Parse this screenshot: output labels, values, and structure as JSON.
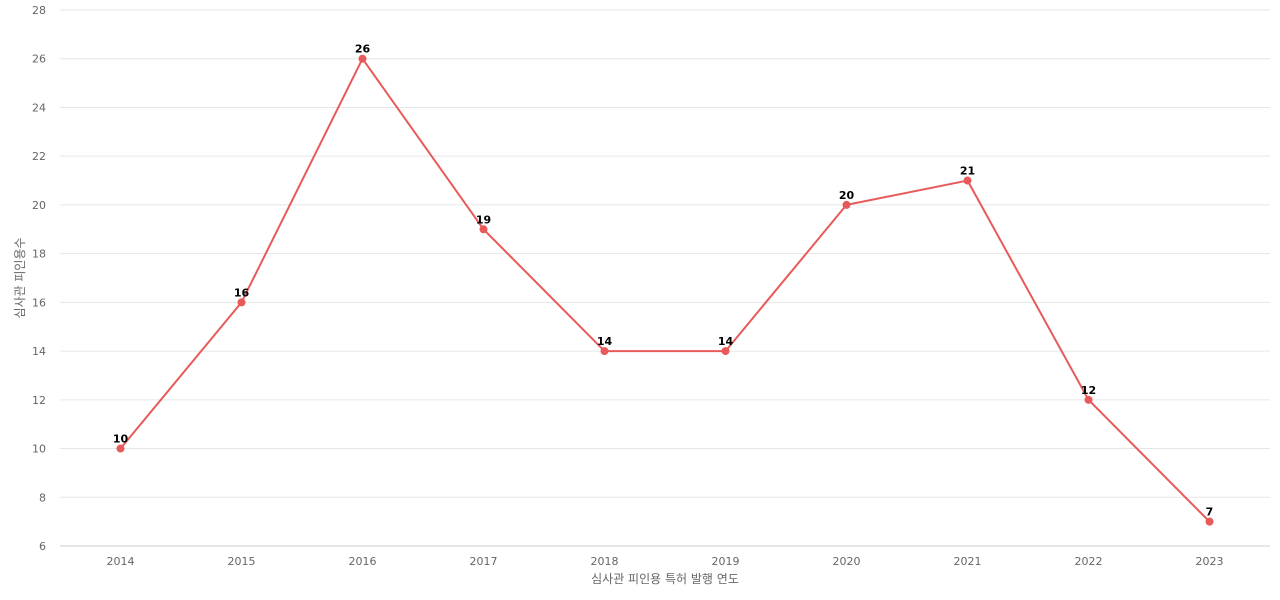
{
  "chart_data": {
    "type": "line",
    "title": "",
    "xlabel": "심사관 피인용 특허 발행 연도",
    "ylabel": "심사관 피인용수",
    "categories": [
      "2014",
      "2015",
      "2016",
      "2017",
      "2018",
      "2019",
      "2020",
      "2021",
      "2022",
      "2023"
    ],
    "series": [
      {
        "values": [
          10,
          16,
          26,
          19,
          14,
          14,
          20,
          21,
          12,
          7
        ],
        "color": "#e85a5a"
      }
    ],
    "ylim": [
      6,
      28
    ],
    "yticks": [
      6,
      8,
      10,
      12,
      14,
      16,
      18,
      20,
      22,
      24,
      26,
      28
    ],
    "grid": true,
    "data_labels": true,
    "legend": "none"
  }
}
